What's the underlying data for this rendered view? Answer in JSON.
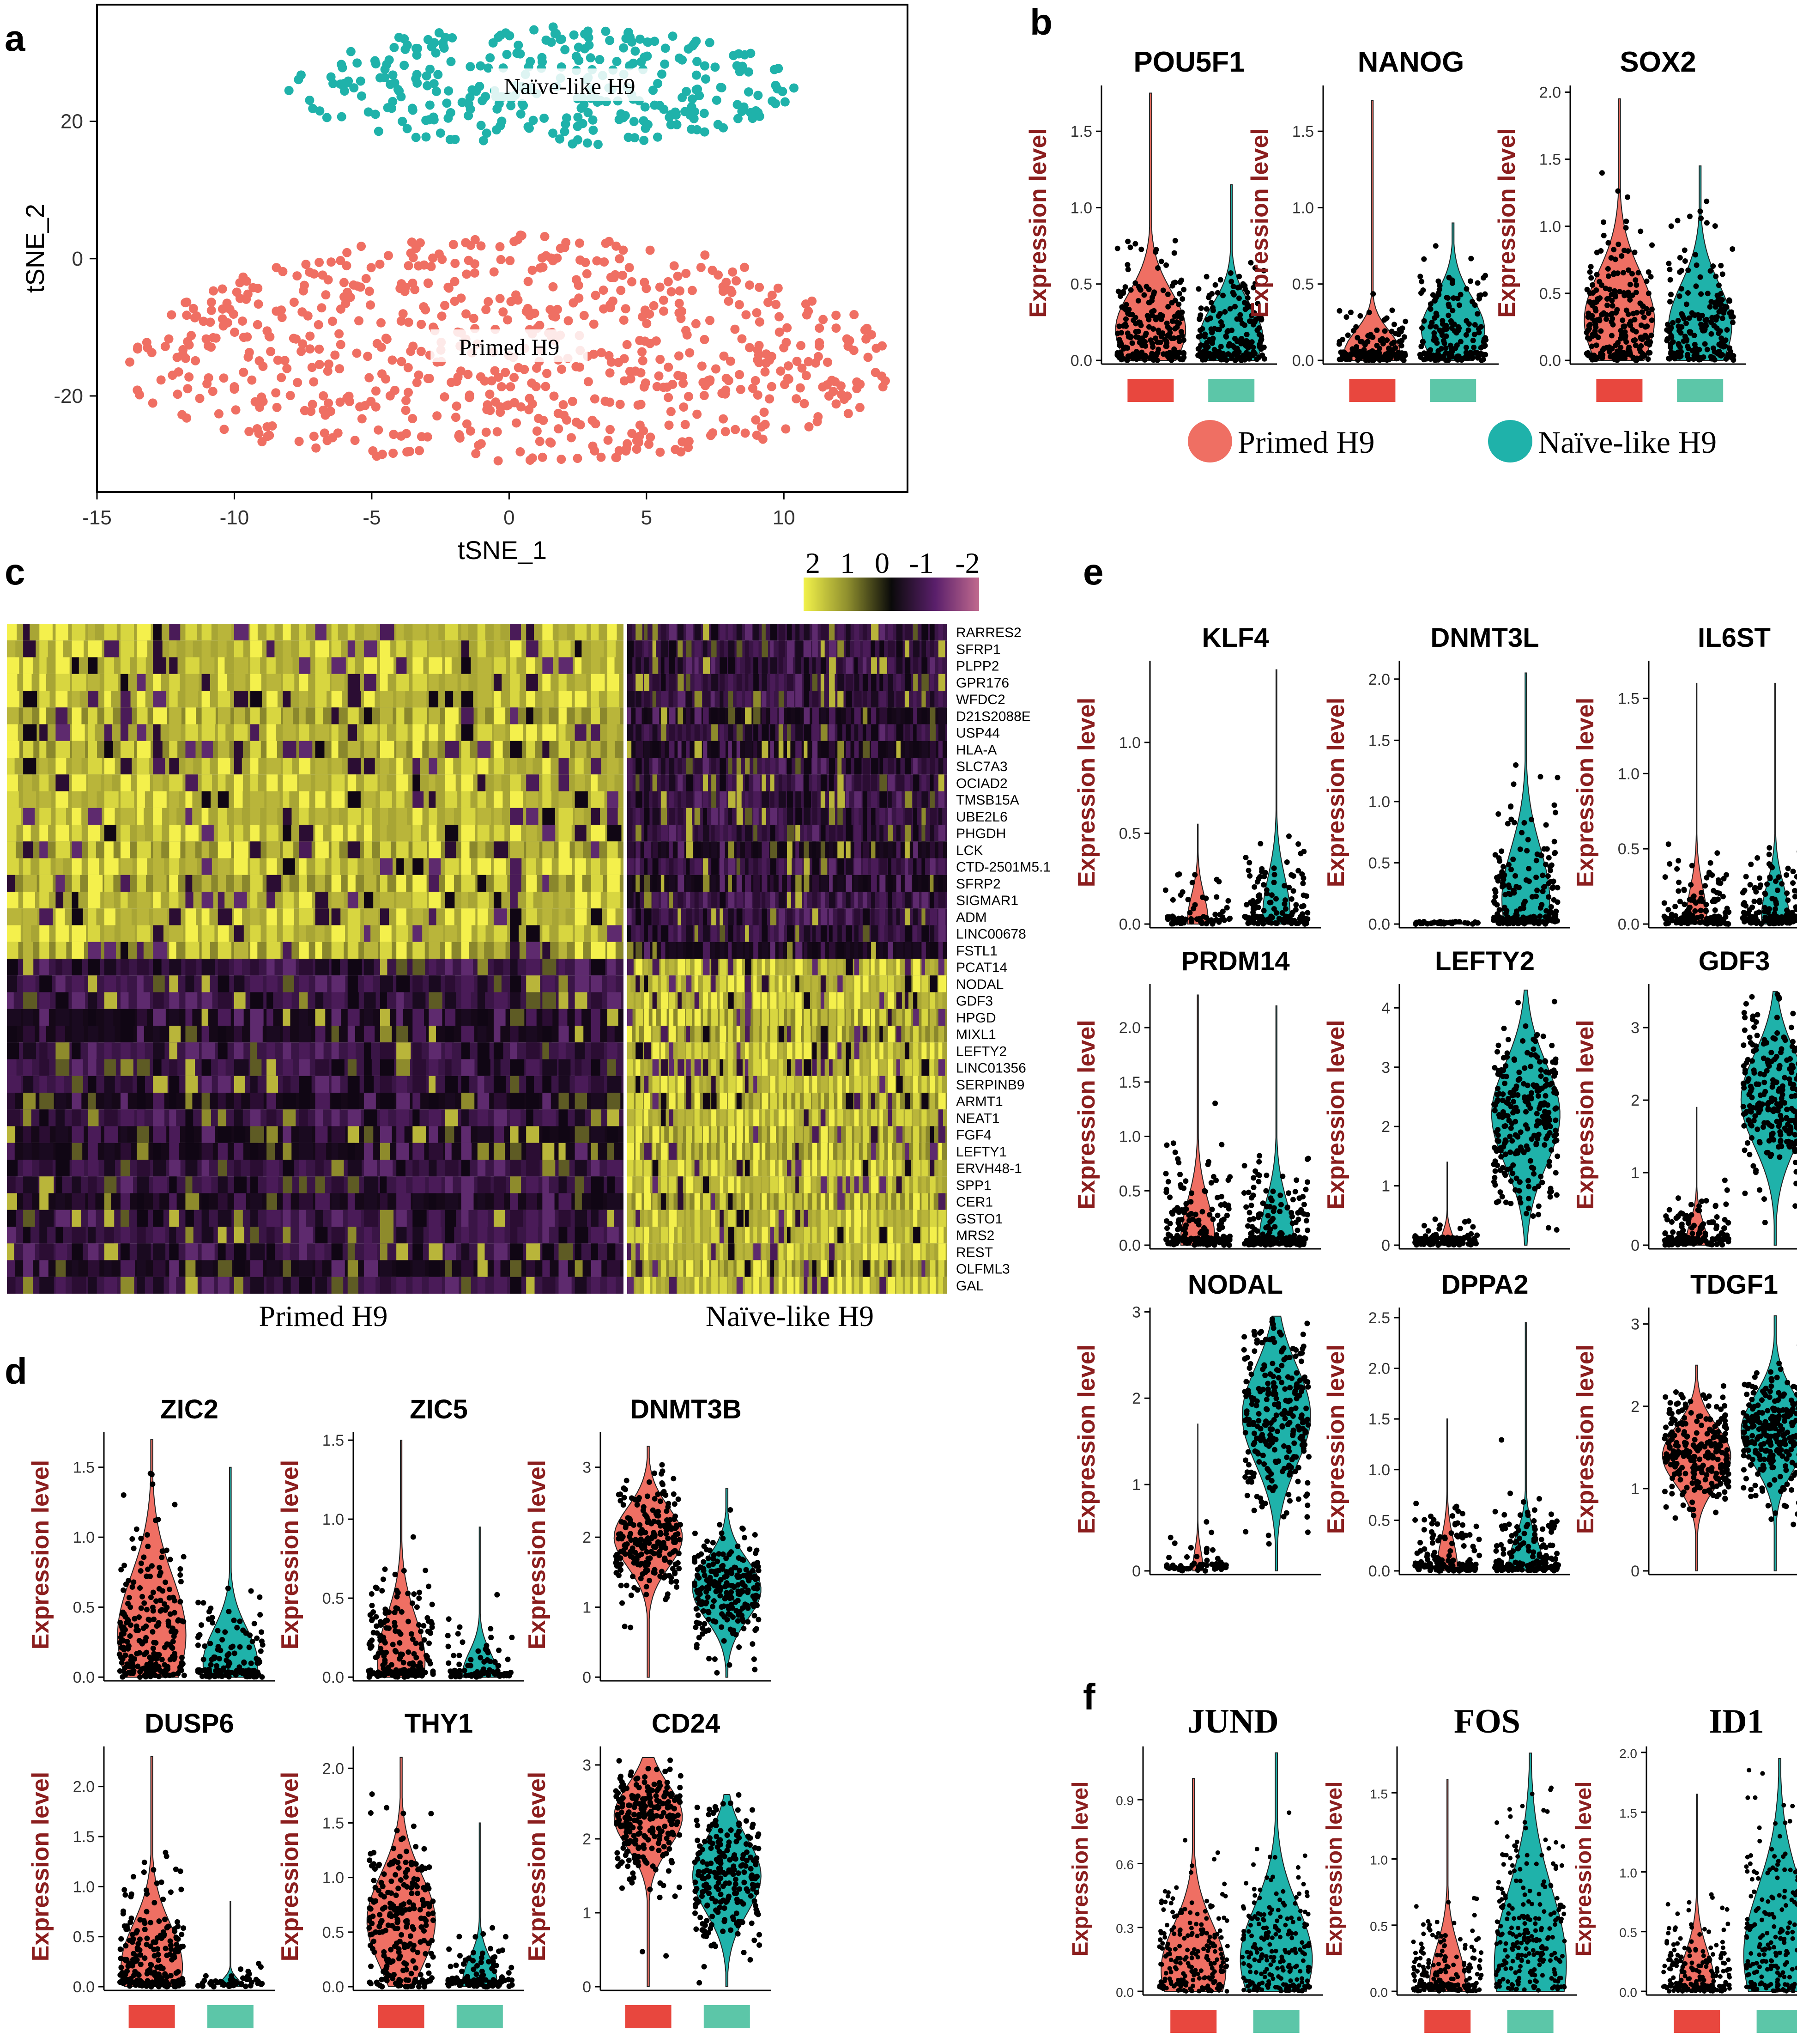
{
  "colors": {
    "primed": "#EF6F63",
    "naive": "#1FB2AA",
    "primed_bar": "#E8473E",
    "naive_bar": "#5CC6A8",
    "axis_label": "#8B1E1E",
    "point": "#000000"
  },
  "panel_labels": {
    "a": "a",
    "b": "b",
    "c": "c",
    "d": "d",
    "e": "e",
    "f": "f"
  },
  "groups": {
    "primed": "Primed H9",
    "naive": "Naïve-like H9"
  },
  "legend": {
    "primed": "Primed H9",
    "naive": "Naïve-like H9"
  },
  "violin_ylabel": "Expression level",
  "tsne": {
    "xlabel": "tSNE_1",
    "ylabel": "tSNE_2",
    "xlim": [
      -15,
      14.5
    ],
    "ylim": [
      -34,
      37
    ],
    "xticks": [
      "-15",
      "-10",
      "-5",
      "0",
      "5",
      "10"
    ],
    "yticks": [
      "-20",
      "0",
      "20"
    ],
    "clusters": [
      {
        "name": "Naïve-like H9",
        "center": [
          1.2,
          25
        ],
        "x_range": [
          -7.5,
          11
        ],
        "y_range": [
          15,
          35
        ],
        "n": 320
      },
      {
        "name": "Primed H9",
        "center": [
          0,
          -13
        ],
        "x_range": [
          -14,
          14
        ],
        "y_range": [
          -29,
          4
        ],
        "n": 700
      }
    ]
  },
  "heatmap": {
    "scale_labels": [
      "2",
      "1",
      "0",
      "-1",
      "-2"
    ],
    "primed_high_genes": [
      "RARRES2",
      "SFRP1",
      "PLPP2",
      "GPR176",
      "WFDC2",
      "D21S2088E",
      "USP44",
      "HLA-A",
      "SLC7A3",
      "OCIAD2",
      "TMSB15A",
      "UBE2L6",
      "PHGDH",
      "LCK",
      "CTD-2501M5.1",
      "SFRP2",
      "SIGMAR1",
      "ADM",
      "LINC00678",
      "FSTL1"
    ],
    "naive_high_genes": [
      "PCAT14",
      "NODAL",
      "GDF3",
      "HPGD",
      "MIXL1",
      "LEFTY2",
      "LINC01356",
      "SERPINB9",
      "ARMT1",
      "NEAT1",
      "FGF4",
      "LEFTY1",
      "ERVH48-1",
      "SPP1",
      "CER1",
      "GSTO1",
      "MRS2",
      "REST",
      "OLFML3",
      "GAL"
    ],
    "xlabels": [
      "Primed H9",
      "Naïve-like H9"
    ]
  },
  "violins": {
    "b": [
      {
        "gene": "POU5F1",
        "yticks": [
          "0.0",
          "0.5",
          "1.0",
          "1.5"
        ],
        "ymax": 1.8
      },
      {
        "gene": "NANOG",
        "yticks": [
          "0.0",
          "0.5",
          "1.0",
          "1.5"
        ],
        "ymax": 1.8
      },
      {
        "gene": "SOX2",
        "yticks": [
          "0.0",
          "0.5",
          "1.0",
          "1.5",
          "2.0"
        ],
        "ymax": 2.05
      }
    ],
    "d": [
      {
        "gene": "ZIC2",
        "yticks": [
          "0.0",
          "0.5",
          "1.0",
          "1.5"
        ],
        "ymax": 1.75
      },
      {
        "gene": "ZIC5",
        "yticks": [
          "0.0",
          "0.5",
          "1.0",
          "1.5"
        ],
        "ymax": 1.55
      },
      {
        "gene": "DNMT3B",
        "yticks": [
          "0",
          "1",
          "2",
          "3"
        ],
        "ymax": 3.5
      },
      {
        "gene": "DUSP6",
        "yticks": [
          "0.0",
          "0.5",
          "1.0",
          "1.5",
          "2.0"
        ],
        "ymax": 2.4
      },
      {
        "gene": "THY1",
        "yticks": [
          "0.0",
          "0.5",
          "1.0",
          "1.5",
          "2.0"
        ],
        "ymax": 2.2
      },
      {
        "gene": "CD24",
        "yticks": [
          "0",
          "1",
          "2",
          "3"
        ],
        "ymax": 3.25
      }
    ],
    "e": [
      {
        "gene": "KLF4",
        "yticks": [
          "0.0",
          "0.5",
          "1.0"
        ],
        "ymax": 1.45
      },
      {
        "gene": "DNMT3L",
        "yticks": [
          "0.0",
          "0.5",
          "1.0",
          "1.5",
          "2.0"
        ],
        "ymax": 2.15
      },
      {
        "gene": "IL6ST",
        "yticks": [
          "0.0",
          "0.5",
          "1.0",
          "1.5"
        ],
        "ymax": 1.75
      },
      {
        "gene": "PRDM14",
        "yticks": [
          "0.0",
          "0.5",
          "1.0",
          "1.5",
          "2.0"
        ],
        "ymax": 2.4
      },
      {
        "gene": "LEFTY2",
        "yticks": [
          "0",
          "1",
          "2",
          "3",
          "4"
        ],
        "ymax": 4.4
      },
      {
        "gene": "GDF3",
        "yticks": [
          "0",
          "1",
          "2",
          "3"
        ],
        "ymax": 3.6
      },
      {
        "gene": "NODAL",
        "yticks": [
          "0",
          "1",
          "2",
          "3"
        ],
        "ymax": 3.05
      },
      {
        "gene": "DPPA2",
        "yticks": [
          "0.0",
          "0.5",
          "1.0",
          "1.5",
          "2.0",
          "2.5"
        ],
        "ymax": 2.6
      },
      {
        "gene": "TDGF1",
        "yticks": [
          "0",
          "1",
          "2",
          "3"
        ],
        "ymax": 3.2
      }
    ],
    "f": [
      {
        "gene": "JUND",
        "yticks": [
          "0.0",
          "0.3",
          "0.6",
          "0.9"
        ],
        "ymax": 1.15
      },
      {
        "gene": "FOS",
        "yticks": [
          "0.0",
          "0.5",
          "1.0",
          "1.5"
        ],
        "ymax": 1.85
      },
      {
        "gene": "ID1",
        "yticks": [
          "0.0",
          "0.5",
          "1.0",
          "1.5",
          "2.0"
        ],
        "ymax": 2.05
      }
    ]
  }
}
